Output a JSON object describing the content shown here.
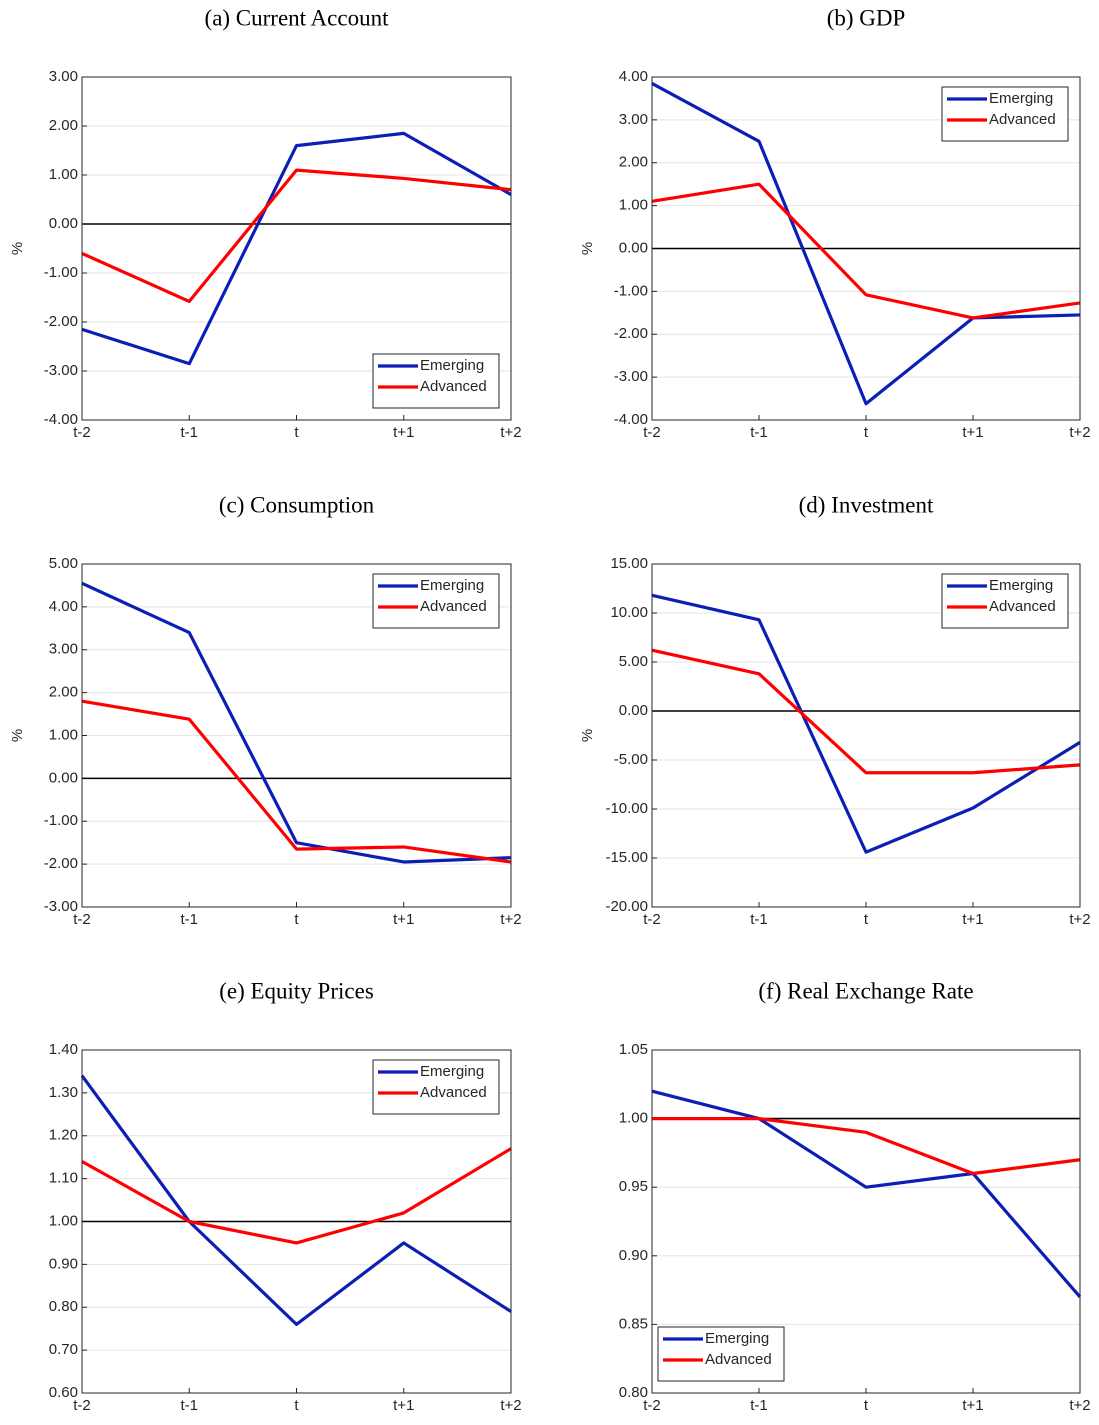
{
  "chart_data": [
    {
      "type": "line",
      "title": "(a) Current Account",
      "ylabel": "%",
      "categories": [
        "t-2",
        "t-1",
        "t",
        "t+1",
        "t+2"
      ],
      "series": [
        {
          "name": "Emerging",
          "color": "#0b1fb5",
          "values": [
            -2.15,
            -2.85,
            1.6,
            1.85,
            0.6
          ]
        },
        {
          "name": "Advanced",
          "color": "#ff0000",
          "values": [
            -0.6,
            -1.58,
            1.1,
            0.93,
            0.7
          ]
        }
      ],
      "ylim": [
        -4,
        3
      ],
      "yticks": [
        {
          "value": -4,
          "label": "-4.00"
        },
        {
          "value": -3,
          "label": "-3.00"
        },
        {
          "value": -2,
          "label": "-2.00"
        },
        {
          "value": -1,
          "label": "-1.00"
        },
        {
          "value": 0,
          "label": "0.00"
        },
        {
          "value": 1,
          "label": "1.00"
        },
        {
          "value": 2,
          "label": "2.00"
        },
        {
          "value": 3,
          "label": "3.00"
        }
      ],
      "hline": 0,
      "grid": true,
      "legend": "lower right"
    },
    {
      "type": "line",
      "title": "(b) GDP",
      "ylabel": "%",
      "categories": [
        "t-2",
        "t-1",
        "t",
        "t+1",
        "t+2"
      ],
      "series": [
        {
          "name": "Emerging",
          "color": "#0b1fb5",
          "values": [
            3.85,
            2.5,
            -3.62,
            -1.62,
            -1.55
          ]
        },
        {
          "name": "Advanced",
          "color": "#ff0000",
          "values": [
            1.1,
            1.5,
            -1.08,
            -1.62,
            -1.27
          ]
        }
      ],
      "ylim": [
        -4,
        4
      ],
      "yticks": [
        {
          "value": -4,
          "label": "-4.00"
        },
        {
          "value": -3,
          "label": "-3.00"
        },
        {
          "value": -2,
          "label": "-2.00"
        },
        {
          "value": -1,
          "label": "-1.00"
        },
        {
          "value": 0,
          "label": "0.00"
        },
        {
          "value": 1,
          "label": "1.00"
        },
        {
          "value": 2,
          "label": "2.00"
        },
        {
          "value": 3,
          "label": "3.00"
        },
        {
          "value": 4,
          "label": "4.00"
        }
      ],
      "hline": 0,
      "grid": true,
      "legend": "upper right"
    },
    {
      "type": "line",
      "title": "(c) Consumption",
      "ylabel": "%",
      "categories": [
        "t-2",
        "t-1",
        "t",
        "t+1",
        "t+2"
      ],
      "series": [
        {
          "name": "Emerging",
          "color": "#0b1fb5",
          "values": [
            4.55,
            3.4,
            -1.5,
            -1.95,
            -1.85
          ]
        },
        {
          "name": "Advanced",
          "color": "#ff0000",
          "values": [
            1.8,
            1.38,
            -1.65,
            -1.6,
            -1.95
          ]
        }
      ],
      "ylim": [
        -3,
        5
      ],
      "yticks": [
        {
          "value": -3,
          "label": "-3.00"
        },
        {
          "value": -2,
          "label": "-2.00"
        },
        {
          "value": -1,
          "label": "-1.00"
        },
        {
          "value": 0,
          "label": "0.00"
        },
        {
          "value": 1,
          "label": "1.00"
        },
        {
          "value": 2,
          "label": "2.00"
        },
        {
          "value": 3,
          "label": "3.00"
        },
        {
          "value": 4,
          "label": "4.00"
        },
        {
          "value": 5,
          "label": "5.00"
        }
      ],
      "hline": 0,
      "grid": true,
      "legend": "upper right"
    },
    {
      "type": "line",
      "title": "(d) Investment",
      "ylabel": "%",
      "categories": [
        "t-2",
        "t-1",
        "t",
        "t+1",
        "t+2"
      ],
      "series": [
        {
          "name": "Emerging",
          "color": "#0b1fb5",
          "values": [
            11.8,
            9.3,
            -14.4,
            -9.9,
            -3.2
          ]
        },
        {
          "name": "Advanced",
          "color": "#ff0000",
          "values": [
            6.2,
            3.8,
            -6.3,
            -6.3,
            -5.5
          ]
        }
      ],
      "ylim": [
        -20,
        15
      ],
      "yticks": [
        {
          "value": -20,
          "label": "-20.00"
        },
        {
          "value": -15,
          "label": "-15.00"
        },
        {
          "value": -10,
          "label": "-10.00"
        },
        {
          "value": -5,
          "label": "-5.00"
        },
        {
          "value": 0,
          "label": "0.00"
        },
        {
          "value": 5,
          "label": "5.00"
        },
        {
          "value": 10,
          "label": "10.00"
        },
        {
          "value": 15,
          "label": "15.00"
        }
      ],
      "hline": 0,
      "grid": true,
      "legend": "upper right"
    },
    {
      "type": "line",
      "title": "(e) Equity Prices",
      "categories": [
        "t-2",
        "t-1",
        "t",
        "t+1",
        "t+2"
      ],
      "series": [
        {
          "name": "Emerging",
          "color": "#0b1fb5",
          "values": [
            1.34,
            1.0,
            0.76,
            0.95,
            0.79
          ]
        },
        {
          "name": "Advanced",
          "color": "#ff0000",
          "values": [
            1.14,
            1.0,
            0.95,
            1.02,
            1.17
          ]
        }
      ],
      "ylim": [
        0.6,
        1.4
      ],
      "yticks": [
        {
          "value": 0.6,
          "label": "0.60"
        },
        {
          "value": 0.7,
          "label": "0.70"
        },
        {
          "value": 0.8,
          "label": "0.80"
        },
        {
          "value": 0.9,
          "label": "0.90"
        },
        {
          "value": 1,
          "label": "1.00"
        },
        {
          "value": 1.1,
          "label": "1.10"
        },
        {
          "value": 1.2,
          "label": "1.20"
        },
        {
          "value": 1.3,
          "label": "1.30"
        },
        {
          "value": 1.4,
          "label": "1.40"
        }
      ],
      "hline": 1,
      "grid": true,
      "legend": "upper right"
    },
    {
      "type": "line",
      "title": "(f) Real Exchange Rate",
      "categories": [
        "t-2",
        "t-1",
        "t",
        "t+1",
        "t+2"
      ],
      "series": [
        {
          "name": "Emerging",
          "color": "#0b1fb5",
          "values": [
            1.02,
            1.0,
            0.95,
            0.96,
            0.87
          ]
        },
        {
          "name": "Advanced",
          "color": "#ff0000",
          "values": [
            1.0,
            1.0,
            0.99,
            0.96,
            0.97
          ]
        }
      ],
      "ylim": [
        0.8,
        1.05
      ],
      "yticks": [
        {
          "value": 0.8,
          "label": "0.80"
        },
        {
          "value": 0.85,
          "label": "0.85"
        },
        {
          "value": 0.9,
          "label": "0.90"
        },
        {
          "value": 0.95,
          "label": "0.95"
        },
        {
          "value": 1,
          "label": "1.00"
        },
        {
          "value": 1.05,
          "label": "1.05"
        }
      ],
      "hline": 1,
      "grid": true,
      "legend": "lower left"
    }
  ]
}
